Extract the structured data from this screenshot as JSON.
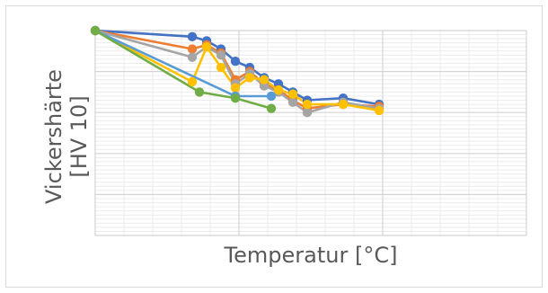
{
  "chart_data": {
    "type": "line",
    "title": "",
    "xlabel": "Temperatur [°C]",
    "ylabel_line1": "Vickershärte",
    "ylabel_line2": "[HV 10]",
    "tick_labels_shown": false,
    "grid": "major and minor",
    "legend": "none",
    "xlim": [
      0,
      600
    ],
    "ylim": [
      0,
      100
    ],
    "x_major_step": 200,
    "x_minor_step": 40,
    "y_major_step": 20,
    "y_minor_step": 2,
    "series": [
      {
        "color": "#4472C4",
        "marker": "circle",
        "x": [
          0,
          135,
          155,
          175,
          195,
          215,
          235,
          255,
          275,
          295,
          345,
          395
        ],
        "y": [
          100,
          97,
          95,
          91,
          85,
          82,
          77,
          74,
          70,
          66,
          67,
          64
        ]
      },
      {
        "color": "#ED7D31",
        "marker": "circle",
        "x": [
          0,
          135,
          155,
          175,
          195,
          215,
          235,
          255,
          275,
          295,
          345,
          395
        ],
        "y": [
          100,
          91,
          93,
          89,
          76,
          80,
          74,
          71,
          66,
          62,
          64,
          63
        ]
      },
      {
        "color": "#A5A5A5",
        "marker": "circle",
        "x": [
          0,
          135,
          155,
          175,
          195,
          215,
          235,
          255,
          275,
          295,
          345,
          395
        ],
        "y": [
          100,
          87,
          92,
          88,
          74,
          79,
          73,
          70,
          65,
          60,
          65,
          62
        ]
      },
      {
        "color": "#FFC000",
        "marker": "circle",
        "x": [
          0,
          135,
          155,
          175,
          195,
          215,
          235,
          255,
          275,
          295,
          345,
          395
        ],
        "y": [
          100,
          75,
          92,
          82,
          72,
          77,
          76,
          71,
          69,
          64,
          64,
          61
        ]
      },
      {
        "color": "#5B9BD5",
        "marker": "circle",
        "x": [
          0,
          195,
          245
        ],
        "y": [
          100,
          68,
          68
        ]
      },
      {
        "color": "#70AD47",
        "marker": "circle",
        "x": [
          0,
          145,
          195,
          245
        ],
        "y": [
          100,
          70,
          67,
          62
        ]
      }
    ]
  }
}
